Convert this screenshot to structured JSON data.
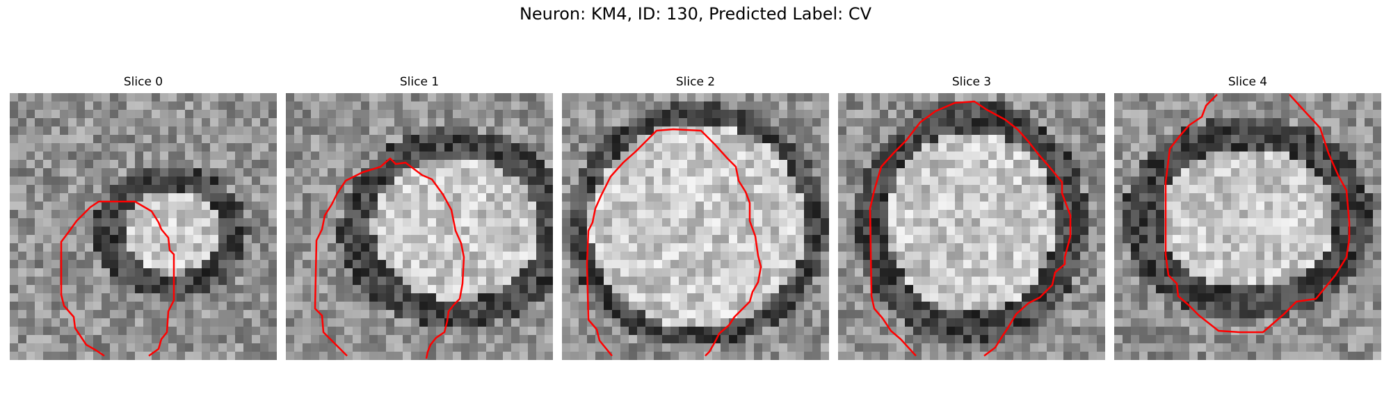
{
  "figure": {
    "title": "Neuron: KM4, ID: 130, Predicted Label: CV"
  },
  "panels": [
    {
      "title": "Slice 0",
      "index": 0
    },
    {
      "title": "Slice 1",
      "index": 1
    },
    {
      "title": "Slice 2",
      "index": 2
    },
    {
      "title": "Slice 3",
      "index": 3
    },
    {
      "title": "Slice 4",
      "index": 4
    }
  ],
  "colors": {
    "contour": "#ff0000",
    "background": "#ffffff"
  }
}
